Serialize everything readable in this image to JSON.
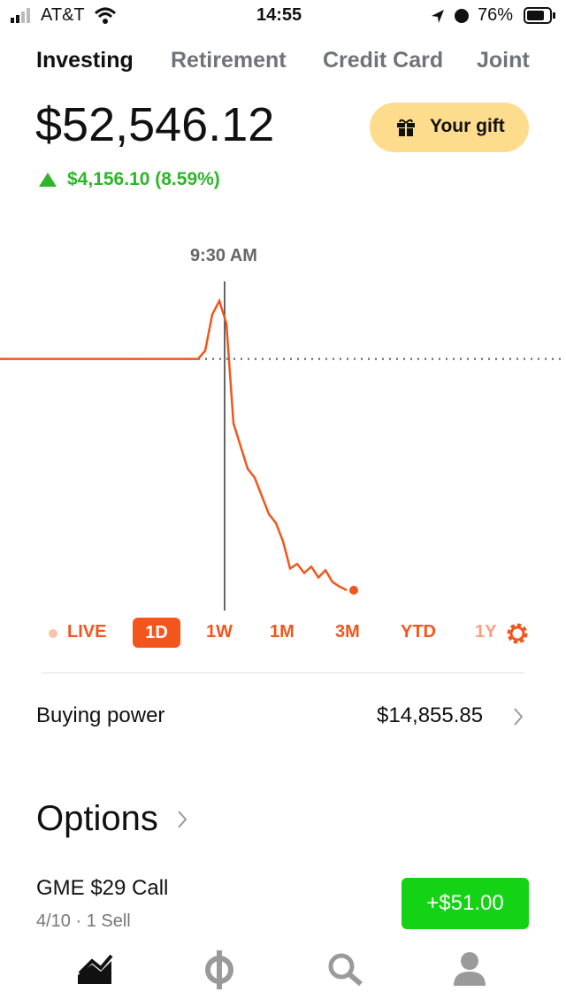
{
  "status_bar": {
    "carrier": "AT&T",
    "time": "14:55",
    "battery": "76%"
  },
  "tabs": [
    "Investing",
    "Retirement",
    "Credit Card",
    "Joint"
  ],
  "account": {
    "balance": "$52,546.12",
    "change": "$4,156.10 (8.59%)",
    "gift_button": "Your gift"
  },
  "chart": {
    "type": "line",
    "cursor_label": "9:30 AM",
    "color": "#f2561d",
    "baseline": 291,
    "values": [
      291,
      291,
      291,
      291,
      291,
      291,
      291,
      291,
      291,
      291,
      291,
      291,
      291,
      291,
      291,
      291,
      291,
      291,
      291,
      291,
      291,
      291,
      291,
      291,
      291,
      291,
      291,
      291,
      291,
      300,
      340,
      355,
      330,
      220,
      195,
      170,
      160,
      140,
      120,
      110,
      90,
      60,
      65,
      55,
      62,
      50,
      58,
      45,
      40,
      36
    ]
  },
  "ranges": [
    "LIVE",
    "1D",
    "1W",
    "1M",
    "3M",
    "YTD",
    "1Y"
  ],
  "buying_power": {
    "label": "Buying power",
    "value": "$14,855.85"
  },
  "options": {
    "title": "Options",
    "items": [
      {
        "name": "GME $29 Call",
        "detail": "4/10 · 1 Sell",
        "change": "+$51.00"
      }
    ]
  }
}
